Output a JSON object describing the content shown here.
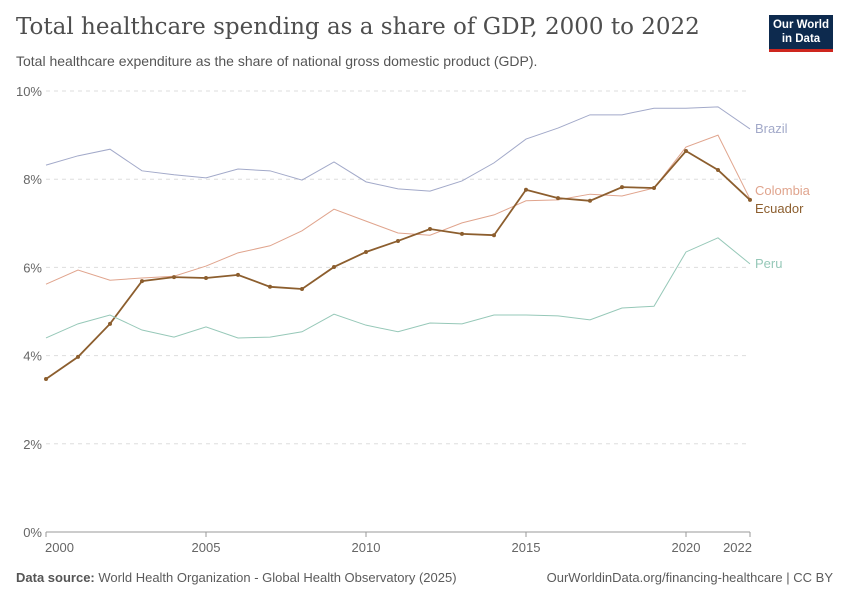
{
  "header": {
    "title": "Total healthcare spending as a share of GDP, 2000 to 2022",
    "subtitle": "Total healthcare expenditure as the share of national gross domestic product (GDP).",
    "logo": "Our World in Data"
  },
  "footer": {
    "source_label": "Data source:",
    "source": "World Health Organization - Global Health Observatory (2025)",
    "url": "OurWorldinData.org/financing-healthcare | CC BY"
  },
  "chart_data": {
    "type": "line",
    "title": "Total healthcare spending as a share of GDP, 2000 to 2022",
    "x": [
      2000,
      2001,
      2002,
      2003,
      2004,
      2005,
      2006,
      2007,
      2008,
      2009,
      2010,
      2011,
      2012,
      2013,
      2014,
      2015,
      2016,
      2017,
      2018,
      2019,
      2020,
      2021,
      2022
    ],
    "xticks": [
      2000,
      2005,
      2010,
      2015,
      2020,
      2022
    ],
    "yticks": [
      0,
      2,
      4,
      6,
      8,
      10
    ],
    "ytick_labels": [
      "0%",
      "2%",
      "4%",
      "6%",
      "8%",
      "10%"
    ],
    "ylim": [
      0,
      10
    ],
    "xlim": [
      2000,
      2022
    ],
    "grid": "horizontal dashed",
    "legend": "right-side line labels",
    "series": [
      {
        "name": "Brazil",
        "color": "#a2a9c9",
        "values": [
          8.32,
          8.53,
          8.68,
          8.19,
          8.1,
          8.03,
          8.23,
          8.19,
          7.98,
          8.39,
          7.94,
          7.78,
          7.73,
          7.96,
          8.37,
          8.91,
          9.16,
          9.46,
          9.46,
          9.61,
          9.61,
          9.64,
          9.14
        ]
      },
      {
        "name": "Colombia",
        "color": "#e0a48d",
        "values": [
          5.62,
          5.94,
          5.71,
          5.76,
          5.8,
          6.03,
          6.33,
          6.49,
          6.83,
          7.32,
          7.05,
          6.78,
          6.73,
          7.01,
          7.19,
          7.51,
          7.53,
          7.66,
          7.62,
          7.8,
          8.73,
          9.0,
          7.55
        ]
      },
      {
        "name": "Ecuador",
        "color": "#8c5e2e",
        "highlighted": true,
        "values": [
          3.47,
          3.97,
          4.72,
          5.69,
          5.78,
          5.76,
          5.83,
          5.56,
          5.51,
          6.01,
          6.35,
          6.6,
          6.87,
          6.76,
          6.73,
          7.76,
          7.57,
          7.51,
          7.82,
          7.8,
          8.64,
          8.21,
          7.53
        ]
      },
      {
        "name": "Peru",
        "color": "#96c8b8",
        "values": [
          4.4,
          4.72,
          4.92,
          4.58,
          4.42,
          4.65,
          4.4,
          4.42,
          4.54,
          4.94,
          4.69,
          4.54,
          4.74,
          4.72,
          4.92,
          4.92,
          4.9,
          4.81,
          5.08,
          5.12,
          6.35,
          6.67,
          6.08
        ]
      }
    ]
  }
}
